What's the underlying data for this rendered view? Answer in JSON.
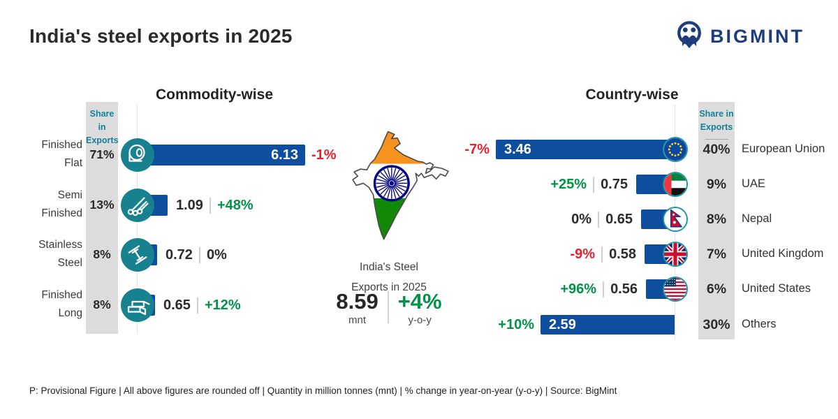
{
  "header": {
    "title": "India's steel exports in 2025",
    "brand": "BIGMINT"
  },
  "share_header": {
    "line1": "Share in",
    "line2": "Exports"
  },
  "center": {
    "caption_line1": "India's Steel",
    "caption_line2": "Exports in 2025",
    "total_value": "8.59",
    "total_unit": "mnt",
    "yoy_change": "+4%",
    "yoy_label": "y-o-y"
  },
  "chart_data": [
    {
      "type": "bar",
      "title": "Commodity-wise",
      "orientation": "horizontal-bars-extending-right",
      "unit": "million tonnes (mnt)",
      "xlim": [
        0,
        6.5
      ],
      "share_column_header": "Share in Exports",
      "rows": [
        {
          "label": "Finished Flat",
          "label_lines": [
            "Finished",
            "Flat"
          ],
          "share": "71%",
          "value": 6.13,
          "value_label": "6.13",
          "change": "-1%",
          "trend": "down",
          "icon": "steel-coil-icon"
        },
        {
          "label": "Semi Finished",
          "label_lines": [
            "Semi",
            "Finished"
          ],
          "share": "13%",
          "value": 1.09,
          "value_label": "1.09",
          "change": "+48%",
          "trend": "up",
          "icon": "steel-billets-icon"
        },
        {
          "label": "Stainless Steel",
          "label_lines": [
            "Stainless",
            "Steel"
          ],
          "share": "8%",
          "value": 0.72,
          "value_label": "0.72",
          "change": "0%",
          "trend": "flat",
          "icon": "steel-beam-icon"
        },
        {
          "label": "Finished Long",
          "label_lines": [
            "Finished",
            "Long"
          ],
          "share": "8%",
          "value": 0.65,
          "value_label": "0.65",
          "change": "+12%",
          "trend": "up",
          "icon": "steel-long-icon"
        }
      ]
    },
    {
      "type": "bar",
      "title": "Country-wise",
      "orientation": "horizontal-bars-extending-left",
      "unit": "million tonnes (mnt)",
      "xlim": [
        0,
        3.6
      ],
      "share_column_header": "Share in Exports",
      "rows": [
        {
          "label": "European Union",
          "share": "40%",
          "value": 3.46,
          "value_label": "3.46",
          "change": "-7%",
          "trend": "down",
          "flag": "eu"
        },
        {
          "label": "UAE",
          "share": "9%",
          "value": 0.75,
          "value_label": "0.75",
          "change": "+25%",
          "trend": "up",
          "flag": "uae"
        },
        {
          "label": "Nepal",
          "share": "8%",
          "value": 0.65,
          "value_label": "0.65",
          "change": "0%",
          "trend": "flat",
          "flag": "nepal"
        },
        {
          "label": "United Kingdom",
          "share": "7%",
          "value": 0.58,
          "value_label": "0.58",
          "change": "-9%",
          "trend": "down",
          "flag": "uk"
        },
        {
          "label": "United States",
          "share": "6%",
          "value": 0.56,
          "value_label": "0.56",
          "change": "+96%",
          "trend": "up",
          "flag": "us"
        },
        {
          "label": "Others",
          "share": "30%",
          "value": 2.59,
          "value_label": "2.59",
          "change": "+10%",
          "trend": "up",
          "flag": null
        }
      ]
    }
  ],
  "footer": {
    "note": "P: Provisional Figure | All above figures are rounded off | Quantity in million tonnes (mnt) | % change in year-on-year (y-o-y) | Source: BigMint"
  },
  "colors": {
    "bar_blue": "#0e4e9e",
    "teal_circle": "#17818f",
    "teal_text": "#17809a",
    "positive_green": "#009245",
    "negative_red": "#e32330",
    "neutral_dark": "#2b2b2b",
    "gray_column": "#dcdcdc",
    "brand_navy": "#1e3d7c",
    "flag_saffron": "#f6921e",
    "flag_green": "#128807",
    "chakra_navy": "#000088"
  }
}
